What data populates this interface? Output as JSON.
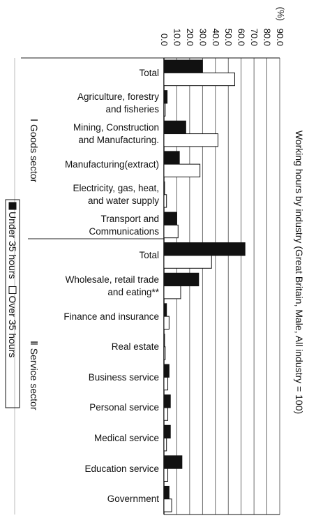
{
  "chart_data": {
    "type": "bar",
    "orientation": "horizontal",
    "title": "Working hours by industry (Great Britain, Male, All industry = 100)",
    "x_unit": "(%)",
    "groups": [
      "Ⅰ Goods sector",
      "Ⅱ Service sector"
    ],
    "categories": [
      "Total",
      "Agriculture, forestry\nand fisheries",
      "Mining, Construction\nand Manufacturing.",
      "Manufacturing(extract)",
      "Electricity, gas, heat,\nand water supply",
      "Transport and\nCommunications",
      "Total",
      "Wholesale, retail trade\nand eating**",
      "Finance and insurance",
      "Real estate",
      "Business service",
      "Personal service",
      "Medical service",
      "Education service",
      "Government"
    ],
    "series": [
      {
        "name": "Under 35 hours",
        "color": "#111111",
        "values": [
          30,
          2.5,
          17,
          12,
          0.5,
          10,
          63,
          27,
          2,
          0.5,
          4,
          5,
          5,
          14,
          4
        ]
      },
      {
        "name": "Over 35 hours",
        "color": "#ffffff",
        "values": [
          55,
          1,
          42,
          28,
          2,
          11,
          37,
          13,
          4,
          1,
          3,
          3,
          2,
          3,
          6
        ]
      }
    ],
    "xlim": [
      0,
      90
    ],
    "xticks": [
      {
        "value": 0,
        "label": "0.0"
      },
      {
        "value": 10,
        "label": "10.0"
      },
      {
        "value": 20,
        "label": "20.0"
      },
      {
        "value": 30,
        "label": "30.0"
      },
      {
        "value": 40,
        "label": "40.0"
      },
      {
        "value": 50,
        "label": "50.0"
      },
      {
        "value": 60,
        "label": "60.0"
      },
      {
        "value": 70,
        "label": "70.0"
      },
      {
        "value": 80,
        "label": "80.0"
      },
      {
        "value": 90,
        "label": "90.0"
      }
    ],
    "grid": true
  }
}
